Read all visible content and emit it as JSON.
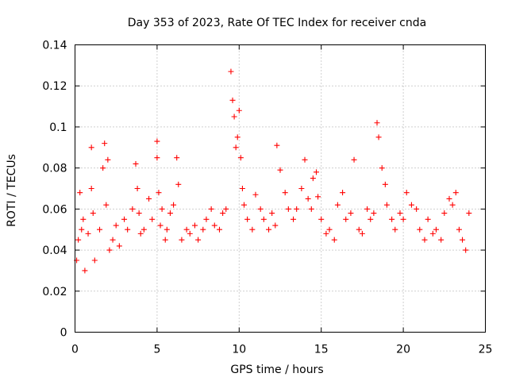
{
  "chart_data": {
    "type": "scatter",
    "title": "Day 353 of 2023, Rate Of TEC Index for receiver cnda",
    "xlabel": "GPS time / hours",
    "ylabel": "ROTI / TECUs",
    "xlim": [
      0,
      25
    ],
    "ylim": [
      0,
      0.14
    ],
    "xticks": [
      0,
      5,
      10,
      15,
      20,
      25
    ],
    "xtick_labels": [
      "0",
      "5",
      "10",
      "15",
      "20",
      "25"
    ],
    "yticks": [
      0,
      0.02,
      0.04,
      0.06,
      0.08,
      0.1,
      0.12,
      0.14
    ],
    "ytick_labels": [
      "0",
      "0.02",
      "0.04",
      "0.06",
      "0.08",
      "0.1",
      "0.12",
      "0.14"
    ],
    "grid": true,
    "marker": "+",
    "color": "#ff0000",
    "series": [
      {
        "name": "ROTI",
        "x": [
          0.1,
          0.2,
          0.3,
          0.4,
          0.5,
          0.6,
          0.8,
          1.0,
          1.0,
          1.1,
          1.2,
          1.5,
          1.7,
          1.8,
          1.9,
          2.0,
          2.1,
          2.3,
          2.5,
          2.7,
          3.0,
          3.2,
          3.5,
          3.7,
          3.8,
          3.9,
          4.0,
          4.2,
          4.5,
          4.7,
          5.0,
          5.0,
          5.1,
          5.2,
          5.3,
          5.5,
          5.6,
          5.8,
          6.0,
          6.2,
          6.3,
          6.5,
          6.8,
          7.0,
          7.3,
          7.5,
          7.8,
          8.0,
          8.3,
          8.5,
          8.8,
          9.0,
          9.2,
          9.5,
          9.6,
          9.7,
          9.8,
          9.9,
          10.0,
          10.1,
          10.2,
          10.3,
          10.5,
          10.8,
          11.0,
          11.3,
          11.5,
          11.8,
          12.0,
          12.2,
          12.3,
          12.5,
          12.8,
          13.0,
          13.3,
          13.5,
          13.8,
          14.0,
          14.2,
          14.4,
          14.5,
          14.7,
          14.8,
          15.0,
          15.3,
          15.5,
          15.8,
          16.0,
          16.3,
          16.5,
          16.8,
          17.0,
          17.3,
          17.5,
          17.8,
          18.0,
          18.2,
          18.4,
          18.5,
          18.7,
          18.9,
          19.0,
          19.3,
          19.5,
          19.8,
          20.0,
          20.2,
          20.5,
          20.8,
          21.0,
          21.3,
          21.5,
          21.8,
          22.0,
          22.3,
          22.5,
          22.8,
          23.0,
          23.2,
          23.4,
          23.6,
          23.8,
          24.0
        ],
        "y": [
          0.035,
          0.045,
          0.068,
          0.05,
          0.055,
          0.03,
          0.048,
          0.09,
          0.07,
          0.058,
          0.035,
          0.05,
          0.08,
          0.092,
          0.062,
          0.084,
          0.04,
          0.045,
          0.052,
          0.042,
          0.055,
          0.05,
          0.06,
          0.082,
          0.07,
          0.058,
          0.048,
          0.05,
          0.065,
          0.055,
          0.093,
          0.085,
          0.068,
          0.052,
          0.06,
          0.045,
          0.05,
          0.058,
          0.062,
          0.085,
          0.072,
          0.045,
          0.05,
          0.048,
          0.052,
          0.045,
          0.05,
          0.055,
          0.06,
          0.052,
          0.05,
          0.058,
          0.06,
          0.127,
          0.113,
          0.105,
          0.09,
          0.095,
          0.108,
          0.085,
          0.07,
          0.062,
          0.055,
          0.05,
          0.067,
          0.06,
          0.055,
          0.05,
          0.058,
          0.052,
          0.091,
          0.079,
          0.068,
          0.06,
          0.055,
          0.06,
          0.07,
          0.084,
          0.065,
          0.06,
          0.075,
          0.078,
          0.066,
          0.055,
          0.048,
          0.05,
          0.045,
          0.062,
          0.068,
          0.055,
          0.058,
          0.084,
          0.05,
          0.048,
          0.06,
          0.055,
          0.058,
          0.102,
          0.095,
          0.08,
          0.072,
          0.062,
          0.055,
          0.05,
          0.058,
          0.055,
          0.068,
          0.062,
          0.06,
          0.05,
          0.045,
          0.055,
          0.048,
          0.05,
          0.045,
          0.058,
          0.065,
          0.062,
          0.068,
          0.05,
          0.045,
          0.04,
          0.058
        ]
      }
    ]
  }
}
